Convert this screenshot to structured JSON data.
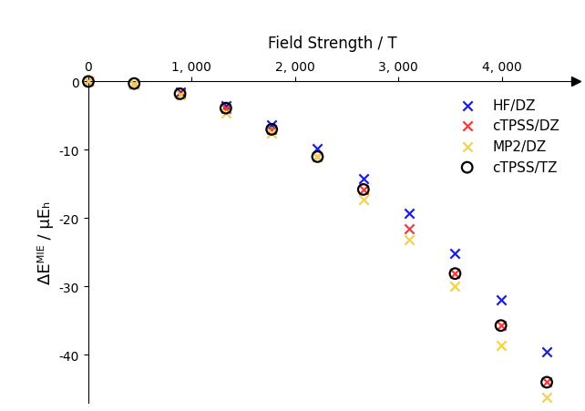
{
  "chart_data": {
    "type": "scatter",
    "x_label": "Field Strength / T",
    "y_label": "ΔEᴹᴵᴱ / μEₕ",
    "x": [
      0,
      443,
      887,
      1330,
      1774,
      2217,
      2661,
      3104,
      3548,
      3991,
      4435
    ],
    "series": [
      {
        "name": "HF/DZ",
        "color": "#1f1fd6",
        "marker": "x",
        "values": [
          0,
          -0.3,
          -1.5,
          -3.5,
          -6.3,
          -9.8,
          -14.2,
          -19.3,
          -25.2,
          -32.0,
          -39.5
        ]
      },
      {
        "name": "cTPSS/DZ",
        "color": "#f03c3c",
        "marker": "x",
        "values": [
          0,
          -0.3,
          -1.8,
          -3.9,
          -7.0,
          -11.0,
          -15.8,
          -21.5,
          -28.1,
          -35.7,
          -44.0
        ]
      },
      {
        "name": "MP2/DZ",
        "color": "#f5d24a",
        "marker": "x",
        "values": [
          0,
          -0.3,
          -1.9,
          -4.6,
          -7.5,
          -11.0,
          -17.3,
          -23.2,
          -30.0,
          -38.6,
          -46.2
        ]
      },
      {
        "name": "cTPSS/TZ",
        "color": "#000000",
        "marker": "o",
        "values": [
          0,
          -0.3,
          -1.8,
          -3.9,
          -7.0,
          -11.0,
          -15.8,
          null,
          -28.1,
          -35.7,
          -44.0
        ]
      }
    ],
    "xlim": [
      0,
      4720
    ],
    "ylim": [
      -47,
      0
    ],
    "xticks": [
      0,
      {
        "value": 1000,
        "label": "1, 000"
      },
      {
        "value": 2000,
        "label": "2, 000"
      },
      {
        "value": 3000,
        "label": "3, 000"
      },
      {
        "value": 4000,
        "label": "4, 000"
      }
    ],
    "yticks": [
      0,
      -10,
      -20,
      -30,
      -40
    ],
    "legend": "upper right",
    "grid": false
  }
}
